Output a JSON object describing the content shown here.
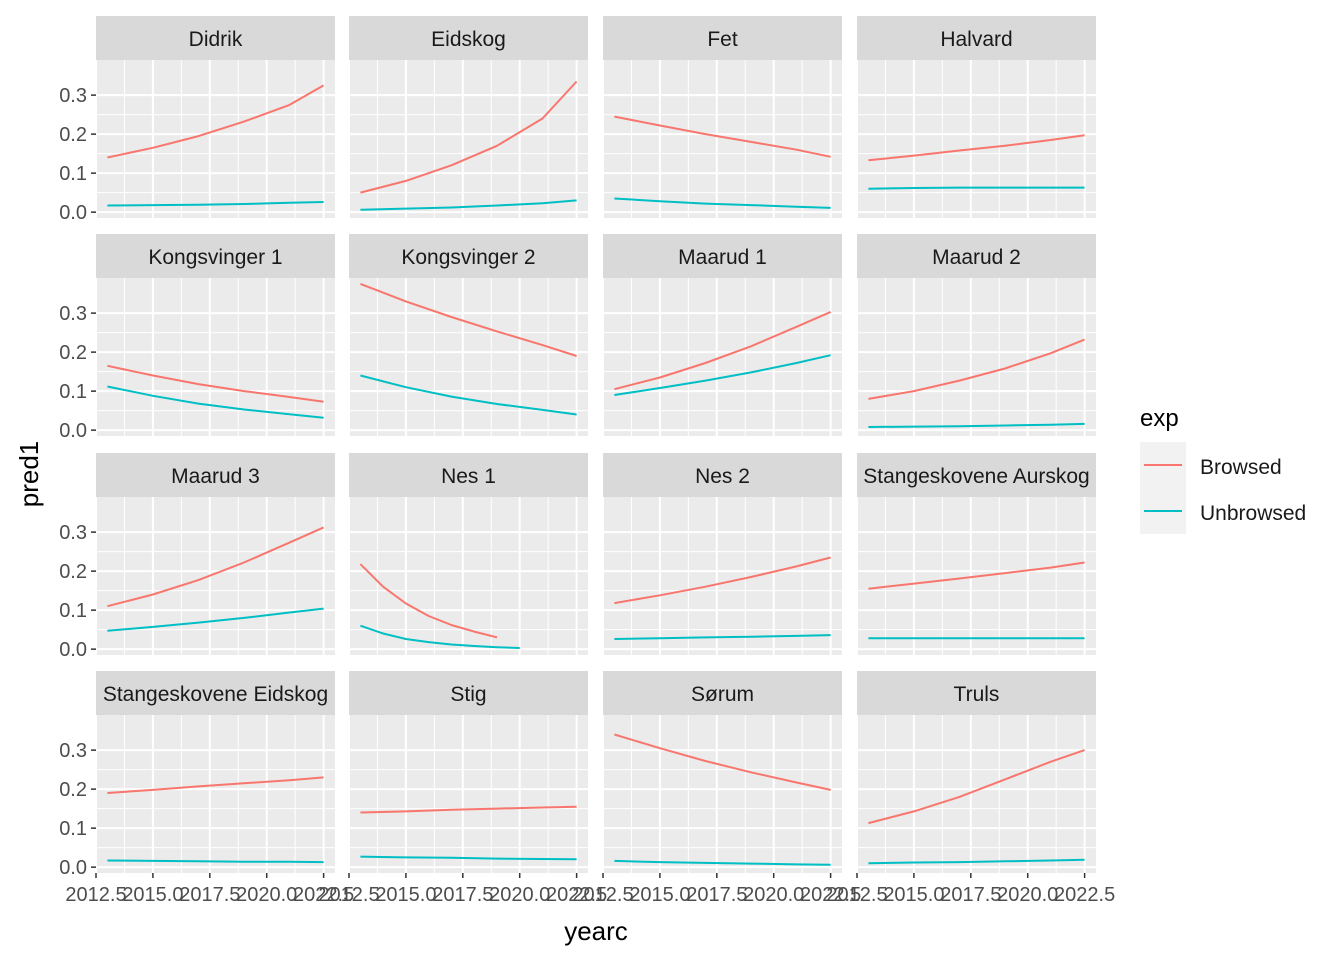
{
  "chart_data": {
    "type": "line",
    "title": "",
    "xlabel": "yearc",
    "ylabel": "pred1",
    "xlim": [
      2012.5,
      2023
    ],
    "ylim": [
      -0.015,
      0.39
    ],
    "x_ticks": [
      2012.5,
      2015,
      2017.5,
      2020,
      2022.5
    ],
    "x_tick_labels": [
      "2012.5",
      "2015.0",
      "2017.5",
      "2020.0",
      "2022.5"
    ],
    "y_ticks": [
      0.0,
      0.1,
      0.2,
      0.3
    ],
    "y_tick_labels": [
      "0.0",
      "0.1",
      "0.2",
      "0.3"
    ],
    "grid": true,
    "legend": {
      "title": "exp",
      "placement": "right",
      "entries": [
        {
          "name": "Browsed",
          "color": "#F8766D"
        },
        {
          "name": "Unbrowsed",
          "color": "#00BFC4"
        }
      ]
    },
    "facet_layout": {
      "rows": 4,
      "cols": 4
    },
    "panels": [
      {
        "label": "Didrik",
        "series": [
          {
            "name": "Browsed",
            "x": [
              2013,
              2015,
              2017,
              2019,
              2021,
              2022.5
            ],
            "y": [
              0.14,
              0.165,
              0.195,
              0.232,
              0.275,
              0.325
            ]
          },
          {
            "name": "Unbrowsed",
            "x": [
              2013,
              2015,
              2017,
              2019,
              2021,
              2022.5
            ],
            "y": [
              0.017,
              0.018,
              0.019,
              0.021,
              0.024,
              0.026
            ]
          }
        ]
      },
      {
        "label": "Eidskog",
        "series": [
          {
            "name": "Browsed",
            "x": [
              2013,
              2015,
              2017,
              2019,
              2021,
              2022.5
            ],
            "y": [
              0.05,
              0.08,
              0.12,
              0.17,
              0.24,
              0.335
            ]
          },
          {
            "name": "Unbrowsed",
            "x": [
              2013,
              2015,
              2017,
              2019,
              2021,
              2022.5
            ],
            "y": [
              0.006,
              0.009,
              0.012,
              0.017,
              0.023,
              0.03
            ]
          }
        ]
      },
      {
        "label": "Fet",
        "series": [
          {
            "name": "Browsed",
            "x": [
              2013,
              2015,
              2017,
              2019,
              2021,
              2022.5
            ],
            "y": [
              0.245,
              0.222,
              0.2,
              0.18,
              0.16,
              0.142
            ]
          },
          {
            "name": "Unbrowsed",
            "x": [
              2013,
              2015,
              2017,
              2019,
              2021,
              2022.5
            ],
            "y": [
              0.035,
              0.028,
              0.022,
              0.018,
              0.014,
              0.011
            ]
          }
        ]
      },
      {
        "label": "Halvard",
        "series": [
          {
            "name": "Browsed",
            "x": [
              2013,
              2015,
              2017,
              2019,
              2021,
              2022.5
            ],
            "y": [
              0.133,
              0.145,
              0.158,
              0.17,
              0.185,
              0.197
            ]
          },
          {
            "name": "Unbrowsed",
            "x": [
              2013,
              2015,
              2017,
              2019,
              2021,
              2022.5
            ],
            "y": [
              0.06,
              0.062,
              0.063,
              0.063,
              0.063,
              0.063
            ]
          }
        ]
      },
      {
        "label": "Kongsvinger 1",
        "series": [
          {
            "name": "Browsed",
            "x": [
              2013,
              2015,
              2017,
              2019,
              2021,
              2022.5
            ],
            "y": [
              0.165,
              0.14,
              0.118,
              0.1,
              0.085,
              0.073
            ]
          },
          {
            "name": "Unbrowsed",
            "x": [
              2013,
              2015,
              2017,
              2019,
              2021,
              2022.5
            ],
            "y": [
              0.112,
              0.088,
              0.068,
              0.053,
              0.041,
              0.032
            ]
          }
        ]
      },
      {
        "label": "Kongsvinger 2",
        "series": [
          {
            "name": "Browsed",
            "x": [
              2013,
              2015,
              2017,
              2019,
              2021,
              2022.5
            ],
            "y": [
              0.375,
              0.33,
              0.29,
              0.253,
              0.218,
              0.19
            ]
          },
          {
            "name": "Unbrowsed",
            "x": [
              2013,
              2015,
              2017,
              2019,
              2021,
              2022.5
            ],
            "y": [
              0.14,
              0.11,
              0.086,
              0.067,
              0.052,
              0.04
            ]
          }
        ]
      },
      {
        "label": "Maarud 1",
        "series": [
          {
            "name": "Browsed",
            "x": [
              2013,
              2015,
              2017,
              2019,
              2021,
              2022.5
            ],
            "y": [
              0.105,
              0.135,
              0.172,
              0.215,
              0.265,
              0.303
            ]
          },
          {
            "name": "Unbrowsed",
            "x": [
              2013,
              2015,
              2017,
              2019,
              2021,
              2022.5
            ],
            "y": [
              0.09,
              0.108,
              0.127,
              0.148,
              0.172,
              0.192
            ]
          }
        ]
      },
      {
        "label": "Maarud 2",
        "series": [
          {
            "name": "Browsed",
            "x": [
              2013,
              2015,
              2017,
              2019,
              2021,
              2022.5
            ],
            "y": [
              0.08,
              0.1,
              0.127,
              0.158,
              0.197,
              0.232
            ]
          },
          {
            "name": "Unbrowsed",
            "x": [
              2013,
              2015,
              2017,
              2019,
              2021,
              2022.5
            ],
            "y": [
              0.008,
              0.009,
              0.01,
              0.012,
              0.014,
              0.016
            ]
          }
        ]
      },
      {
        "label": "Maarud 3",
        "series": [
          {
            "name": "Browsed",
            "x": [
              2013,
              2015,
              2017,
              2019,
              2021,
              2022.5
            ],
            "y": [
              0.11,
              0.14,
              0.177,
              0.222,
              0.273,
              0.312
            ]
          },
          {
            "name": "Unbrowsed",
            "x": [
              2013,
              2015,
              2017,
              2019,
              2021,
              2022.5
            ],
            "y": [
              0.047,
              0.057,
              0.068,
              0.08,
              0.094,
              0.104
            ]
          }
        ]
      },
      {
        "label": "Nes 1",
        "series": [
          {
            "name": "Browsed",
            "x": [
              2013,
              2014,
              2015,
              2016,
              2017,
              2018,
              2019
            ],
            "y": [
              0.218,
              0.16,
              0.117,
              0.085,
              0.062,
              0.045,
              0.03
            ]
          },
          {
            "name": "Unbrowsed",
            "x": [
              2013,
              2014,
              2015,
              2016,
              2017,
              2018,
              2019,
              2020
            ],
            "y": [
              0.06,
              0.04,
              0.026,
              0.018,
              0.012,
              0.008,
              0.005,
              0.003
            ]
          }
        ]
      },
      {
        "label": "Nes 2",
        "series": [
          {
            "name": "Browsed",
            "x": [
              2013,
              2015,
              2017,
              2019,
              2021,
              2022.5
            ],
            "y": [
              0.118,
              0.138,
              0.16,
              0.185,
              0.212,
              0.235
            ]
          },
          {
            "name": "Unbrowsed",
            "x": [
              2013,
              2015,
              2017,
              2019,
              2021,
              2022.5
            ],
            "y": [
              0.026,
              0.028,
              0.03,
              0.032,
              0.034,
              0.036
            ]
          }
        ]
      },
      {
        "label": "Stangeskovene Aurskog",
        "series": [
          {
            "name": "Browsed",
            "x": [
              2013,
              2015,
              2017,
              2019,
              2021,
              2022.5
            ],
            "y": [
              0.155,
              0.168,
              0.181,
              0.195,
              0.209,
              0.222
            ]
          },
          {
            "name": "Unbrowsed",
            "x": [
              2013,
              2015,
              2017,
              2019,
              2021,
              2022.5
            ],
            "y": [
              0.028,
              0.028,
              0.028,
              0.028,
              0.028,
              0.028
            ]
          }
        ]
      },
      {
        "label": "Stangeskovene Eidskog",
        "series": [
          {
            "name": "Browsed",
            "x": [
              2013,
              2015,
              2017,
              2019,
              2021,
              2022.5
            ],
            "y": [
              0.19,
              0.198,
              0.207,
              0.215,
              0.223,
              0.23
            ]
          },
          {
            "name": "Unbrowsed",
            "x": [
              2013,
              2015,
              2017,
              2019,
              2021,
              2022.5
            ],
            "y": [
              0.017,
              0.016,
              0.015,
              0.014,
              0.014,
              0.013
            ]
          }
        ]
      },
      {
        "label": "Stig",
        "series": [
          {
            "name": "Browsed",
            "x": [
              2013,
              2015,
              2017,
              2019,
              2021,
              2022.5
            ],
            "y": [
              0.14,
              0.143,
              0.147,
              0.15,
              0.153,
              0.155
            ]
          },
          {
            "name": "Unbrowsed",
            "x": [
              2013,
              2015,
              2017,
              2019,
              2021,
              2022.5
            ],
            "y": [
              0.027,
              0.025,
              0.024,
              0.022,
              0.021,
              0.02
            ]
          }
        ]
      },
      {
        "label": "Sørum",
        "series": [
          {
            "name": "Browsed",
            "x": [
              2013,
              2015,
              2017,
              2019,
              2021,
              2022.5
            ],
            "y": [
              0.34,
              0.305,
              0.272,
              0.243,
              0.217,
              0.198
            ]
          },
          {
            "name": "Unbrowsed",
            "x": [
              2013,
              2015,
              2017,
              2019,
              2021,
              2022.5
            ],
            "y": [
              0.016,
              0.013,
              0.011,
              0.009,
              0.007,
              0.006
            ]
          }
        ]
      },
      {
        "label": "Truls",
        "series": [
          {
            "name": "Browsed",
            "x": [
              2013,
              2015,
              2017,
              2019,
              2021,
              2022.5
            ],
            "y": [
              0.113,
              0.143,
              0.18,
              0.225,
              0.27,
              0.3
            ]
          },
          {
            "name": "Unbrowsed",
            "x": [
              2013,
              2015,
              2017,
              2019,
              2021,
              2022.5
            ],
            "y": [
              0.01,
              0.012,
              0.013,
              0.015,
              0.017,
              0.019
            ]
          }
        ]
      }
    ]
  }
}
